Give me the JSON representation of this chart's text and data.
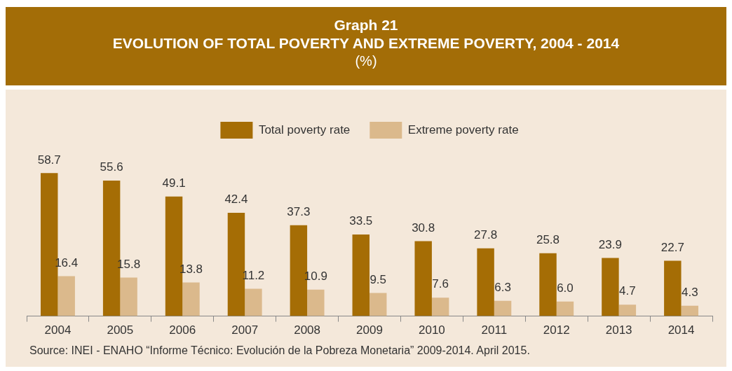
{
  "chart_data": {
    "type": "bar",
    "title": "Graph 21",
    "subtitle": "EVOLUTION OF TOTAL POVERTY AND EXTREME POVERTY, 2004 - 2014",
    "annotations": [
      "(%)",
      "Source: INEI - ENAHO “Informe Técnico: Evolución de la Pobreza Monetaria” 2009-2014. April 2015."
    ],
    "categories": [
      "2004",
      "2005",
      "2006",
      "2007",
      "2008",
      "2009",
      "2010",
      "2011",
      "2012",
      "2013",
      "2014"
    ],
    "series": [
      {
        "name": "Total poverty rate",
        "color": "#a56d05",
        "values": [
          58.7,
          55.6,
          49.1,
          42.4,
          37.3,
          33.5,
          30.8,
          27.8,
          25.8,
          23.9,
          22.7
        ],
        "value_labels": [
          "58.7",
          "55.6",
          "49.1",
          "42.4",
          "37.3",
          "33.5",
          "30.8",
          "27.8",
          "25.8",
          "23.9",
          "22.7"
        ]
      },
      {
        "name": "Extreme poverty rate",
        "color": "#dbb98c",
        "values": [
          16.4,
          15.8,
          13.8,
          11.2,
          10.9,
          9.5,
          7.6,
          6.3,
          6.0,
          4.7,
          4.3
        ],
        "value_labels": [
          "16.4",
          "15.8",
          "13.8",
          "11.2",
          "10.9",
          "9.5",
          "7.6",
          "6.3",
          "6.0",
          "4.7",
          "4.3"
        ]
      }
    ],
    "legend": "top",
    "grid": false
  }
}
